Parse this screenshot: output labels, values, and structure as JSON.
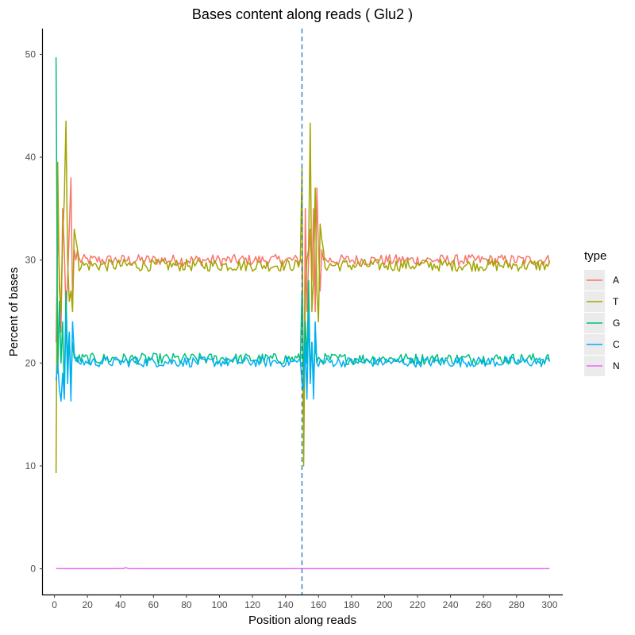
{
  "chart_data": {
    "type": "line",
    "title": "Bases content along reads ( Glu2 )",
    "xlabel": "Position along reads",
    "ylabel": "Percent of bases",
    "xlim": [
      -7,
      308
    ],
    "ylim": [
      -2.5,
      52.5
    ],
    "x_ticks": [
      0,
      20,
      40,
      60,
      80,
      100,
      120,
      140,
      160,
      180,
      200,
      220,
      240,
      260,
      280,
      300
    ],
    "y_ticks": [
      0,
      10,
      20,
      30,
      40,
      50
    ],
    "reference_line": {
      "x": 150,
      "style": "dashed",
      "color": "#2C7FB8"
    },
    "grid": false,
    "legend": {
      "title": "type",
      "position": "right"
    },
    "series": [
      {
        "name": "A",
        "color": "#F8766D",
        "level": 30.0,
        "noise": 0.55,
        "spikes": [
          [
            1,
            22
          ],
          [
            2,
            33
          ],
          [
            3,
            29
          ],
          [
            4,
            23
          ],
          [
            5,
            35
          ],
          [
            6,
            31
          ],
          [
            7,
            25
          ],
          [
            8,
            28
          ],
          [
            9,
            33
          ],
          [
            10,
            38
          ],
          [
            11,
            26
          ],
          [
            12,
            31
          ],
          [
            13,
            30
          ],
          [
            14,
            31
          ],
          [
            151,
            11
          ],
          [
            152,
            35
          ],
          [
            153,
            25
          ],
          [
            154,
            30
          ],
          [
            155,
            33
          ],
          [
            156,
            28
          ],
          [
            157,
            35
          ],
          [
            158,
            25
          ],
          [
            159,
            37
          ],
          [
            160,
            31
          ],
          [
            161,
            27
          ],
          [
            162,
            31
          ],
          [
            163,
            30
          ]
        ]
      },
      {
        "name": "T",
        "color": "#A3A500",
        "level": 29.5,
        "noise": 0.6,
        "spikes": [
          [
            1,
            9.3
          ],
          [
            2,
            39.5
          ],
          [
            3,
            27
          ],
          [
            4,
            25
          ],
          [
            5,
            32
          ],
          [
            6,
            36
          ],
          [
            7,
            43.5
          ],
          [
            8,
            30
          ],
          [
            9,
            26
          ],
          [
            10,
            27
          ],
          [
            11,
            25
          ],
          [
            12,
            33
          ],
          [
            13,
            32
          ],
          [
            14,
            31
          ],
          [
            150,
            39
          ],
          [
            151,
            10
          ],
          [
            152,
            27
          ],
          [
            153,
            30
          ],
          [
            154,
            31
          ],
          [
            155,
            43.3
          ],
          [
            156,
            25
          ],
          [
            157,
            28
          ],
          [
            158,
            37
          ],
          [
            159,
            27
          ],
          [
            160,
            24
          ],
          [
            161,
            33.5
          ],
          [
            162,
            32
          ],
          [
            163,
            31
          ]
        ]
      },
      {
        "name": "G",
        "color": "#00BF7D",
        "level": 20.4,
        "noise": 0.55,
        "spikes": [
          [
            1,
            49.7
          ],
          [
            2,
            19
          ],
          [
            3,
            26
          ],
          [
            4,
            20
          ],
          [
            5,
            24
          ],
          [
            6,
            17
          ],
          [
            7,
            27
          ],
          [
            8,
            20
          ],
          [
            9,
            23
          ],
          [
            10,
            18
          ],
          [
            11,
            22
          ],
          [
            12,
            20.5
          ],
          [
            150,
            27
          ],
          [
            151,
            18
          ],
          [
            152,
            24
          ],
          [
            153,
            20
          ],
          [
            154,
            28
          ],
          [
            155,
            19
          ],
          [
            156,
            22
          ],
          [
            157,
            18
          ],
          [
            158,
            22
          ],
          [
            159,
            20
          ]
        ]
      },
      {
        "name": "C",
        "color": "#00B0F6",
        "level": 20.1,
        "noise": 0.5,
        "spikes": [
          [
            1,
            18.3
          ],
          [
            2,
            20
          ],
          [
            3,
            17.5
          ],
          [
            4,
            16.3
          ],
          [
            5,
            19
          ],
          [
            6,
            16.5
          ],
          [
            7,
            24.8
          ],
          [
            8,
            18
          ],
          [
            9,
            23
          ],
          [
            10,
            16.3
          ],
          [
            11,
            24
          ],
          [
            12,
            21
          ],
          [
            150,
            18
          ],
          [
            151,
            17.5
          ],
          [
            152,
            22
          ],
          [
            153,
            16.5
          ],
          [
            154,
            25
          ],
          [
            155,
            18
          ],
          [
            156,
            22
          ],
          [
            157,
            16.5
          ],
          [
            158,
            24
          ],
          [
            159,
            20
          ]
        ]
      },
      {
        "name": "N",
        "color": "#E76BF3",
        "level": 0.02,
        "noise": 0.0,
        "spikes": [
          [
            43,
            0.12
          ],
          [
            44,
            0.06
          ]
        ]
      }
    ],
    "x_range": [
      1,
      300
    ]
  }
}
